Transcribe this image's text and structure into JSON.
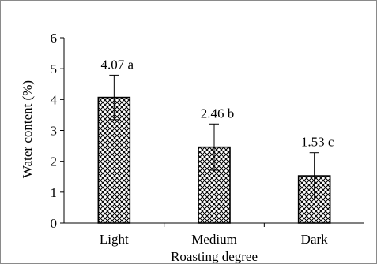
{
  "chart_data": {
    "type": "bar",
    "categories": [
      "Light",
      "Medium",
      "Dark"
    ],
    "values": [
      4.07,
      2.46,
      1.53
    ],
    "errors": [
      0.72,
      0.75,
      0.75
    ],
    "data_labels": [
      "4.07 a",
      "2.46 b",
      "1.53 c"
    ],
    "title": "",
    "xlabel": "Roasting degree",
    "ylabel": "Water content (%)",
    "ylim": [
      0,
      6
    ],
    "yticks": [
      0,
      1,
      2,
      3,
      4,
      5,
      6
    ],
    "grid": false,
    "legend": "none",
    "bar_pattern": "crosshatch",
    "colors": {
      "bar_stroke": "#000000",
      "pattern": "#000000",
      "axis": "#000000"
    }
  }
}
